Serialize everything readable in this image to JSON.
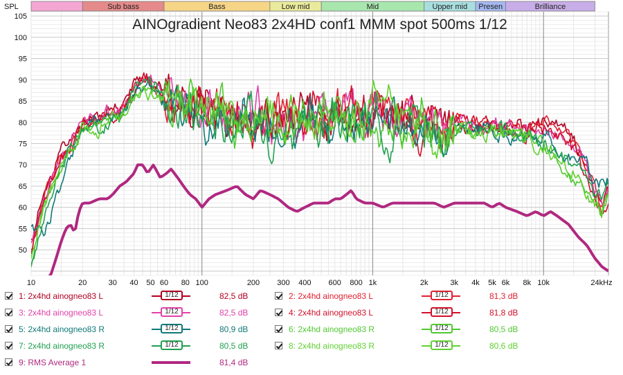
{
  "chart_data": {
    "type": "line",
    "title": "AINOgradient Neo83 2x4HD conf1 MMM spot 500ms 1/12",
    "ylabel": "SPL",
    "xscale": "log",
    "xlim": [
      10,
      24000
    ],
    "ylim": [
      44,
      106
    ],
    "yticks": [
      50,
      55,
      60,
      65,
      70,
      75,
      80,
      85,
      90,
      95,
      100,
      105
    ],
    "ytick_labels": [
      "50",
      "55",
      "60",
      "65",
      "70",
      "75",
      "80",
      "85",
      "90",
      "95",
      "100",
      "105"
    ],
    "xticks": [
      10,
      20,
      30,
      40,
      50,
      60,
      80,
      100,
      200,
      300,
      400,
      600,
      800,
      1000,
      2000,
      3000,
      4000,
      5000,
      6000,
      8000,
      10000,
      24000
    ],
    "xtick_labels": [
      "10",
      "20",
      "30",
      "40",
      "50",
      "60",
      "80",
      "100",
      "200",
      "300",
      "400",
      "600",
      "800",
      "1k",
      "2k",
      "3k",
      "4k",
      "5k",
      "6k",
      "8k",
      "10k",
      "24kHz"
    ],
    "bands": [
      {
        "label": "",
        "from": 10,
        "to": 20,
        "color": "#f4a6d3"
      },
      {
        "label": "Sub bass",
        "from": 20,
        "to": 60,
        "color": "#e58a8a"
      },
      {
        "label": "Bass",
        "from": 60,
        "to": 250,
        "color": "#f6d587"
      },
      {
        "label": "Low mid",
        "from": 250,
        "to": 500,
        "color": "#eaea9c"
      },
      {
        "label": "Mid",
        "from": 500,
        "to": 2000,
        "color": "#a8e6ae"
      },
      {
        "label": "Upper mid",
        "from": 2000,
        "to": 4000,
        "color": "#a8dede"
      },
      {
        "label": "Presen",
        "from": 4000,
        "to": 6000,
        "color": "#a4b8f0"
      },
      {
        "label": "Brilliance",
        "from": 6000,
        "to": 20000,
        "color": "#c8aee8"
      }
    ],
    "grid": true,
    "legend_position": "bottom",
    "series": [
      {
        "name": "1: 2x4hd ainogneo83 L",
        "color": "#b00020",
        "smoothing": "1/12",
        "value": "82,5 dB",
        "seed": 11,
        "x": [
          10,
          12,
          15,
          18,
          20,
          25,
          30,
          35,
          40,
          45,
          50,
          60,
          70,
          80,
          100,
          150,
          200,
          300,
          400,
          500,
          700,
          1000,
          1500,
          2000,
          3000,
          5000,
          8000,
          10000,
          12000,
          15000,
          18000,
          22000,
          24000
        ],
        "y": [
          52,
          64,
          73,
          77,
          80,
          81,
          83,
          85,
          89,
          91,
          90,
          87,
          86,
          85,
          84,
          83,
          81,
          80,
          80,
          81,
          81,
          82,
          81,
          80,
          80,
          79,
          79,
          80,
          79,
          76,
          70,
          60,
          64
        ]
      },
      {
        "name": "2: 2x4hd ainogneo83 L",
        "color": "#e02030",
        "smoothing": "1/12",
        "value": "81,3 dB",
        "seed": 12,
        "x": [
          10,
          12,
          15,
          18,
          20,
          25,
          30,
          35,
          40,
          45,
          50,
          60,
          70,
          80,
          100,
          150,
          200,
          300,
          400,
          500,
          700,
          1000,
          1500,
          2000,
          3000,
          5000,
          8000,
          10000,
          12000,
          15000,
          18000,
          22000,
          24000
        ],
        "y": [
          50,
          62,
          72,
          76,
          79,
          81,
          82,
          84,
          88,
          90,
          89,
          86,
          85,
          84,
          83,
          82,
          81,
          80,
          80,
          80,
          81,
          81,
          81,
          80,
          80,
          79,
          78,
          79,
          78,
          75,
          69,
          59,
          63
        ]
      },
      {
        "name": "3: 2x4hd ainogneo83 L",
        "color": "#e040a8",
        "smoothing": "1/12",
        "value": "82,5 dB",
        "seed": 13,
        "x": [
          10,
          12,
          15,
          18,
          20,
          25,
          30,
          35,
          40,
          45,
          50,
          60,
          70,
          80,
          100,
          150,
          200,
          300,
          400,
          500,
          700,
          1000,
          1500,
          2000,
          3000,
          5000,
          8000,
          10000,
          12000,
          15000,
          18000,
          22000,
          24000
        ],
        "y": [
          51,
          63,
          72,
          77,
          80,
          81,
          83,
          85,
          88,
          90,
          90,
          87,
          86,
          84,
          83,
          82,
          81,
          80,
          80,
          81,
          81,
          81,
          81,
          80,
          80,
          79,
          78,
          78,
          77,
          74,
          69,
          60,
          64
        ]
      },
      {
        "name": "4: 2x4hd ainogneo83 L",
        "color": "#d0102a",
        "smoothing": "1/12",
        "value": "81,8 dB",
        "seed": 14,
        "x": [
          10,
          12,
          15,
          18,
          20,
          25,
          30,
          35,
          40,
          45,
          50,
          60,
          70,
          80,
          100,
          150,
          200,
          300,
          400,
          500,
          700,
          1000,
          1500,
          2000,
          3000,
          5000,
          8000,
          10000,
          12000,
          15000,
          18000,
          22000,
          24000
        ],
        "y": [
          49,
          62,
          71,
          76,
          79,
          80,
          82,
          84,
          87,
          89,
          89,
          86,
          85,
          84,
          83,
          82,
          81,
          80,
          80,
          80,
          81,
          81,
          81,
          80,
          80,
          79,
          78,
          79,
          78,
          74,
          68,
          58,
          62
        ]
      },
      {
        "name": "5: 2x4hd ainogneo83 R",
        "color": "#107878",
        "smoothing": "1/12",
        "value": "80,9 dB",
        "seed": 15,
        "x": [
          10,
          12,
          15,
          18,
          20,
          25,
          30,
          35,
          40,
          45,
          50,
          60,
          70,
          80,
          100,
          150,
          200,
          300,
          400,
          500,
          700,
          1000,
          1500,
          2000,
          3000,
          5000,
          8000,
          10000,
          12000,
          15000,
          18000,
          22000,
          24000
        ],
        "y": [
          56,
          55,
          66,
          74,
          79,
          80,
          81,
          83,
          86,
          88,
          88,
          86,
          84,
          83,
          82,
          81,
          80,
          79,
          79,
          80,
          80,
          81,
          80,
          79,
          79,
          78,
          77,
          76,
          74,
          72,
          69,
          65,
          66
        ]
      },
      {
        "name": "6: 2x4hd ainogneo83 R",
        "color": "#50c830",
        "smoothing": "1/12",
        "value": "80,5 dB",
        "seed": 16,
        "x": [
          10,
          12,
          15,
          18,
          20,
          25,
          30,
          35,
          40,
          45,
          50,
          60,
          70,
          80,
          100,
          150,
          200,
          300,
          400,
          500,
          700,
          1000,
          1500,
          2000,
          3000,
          5000,
          8000,
          10000,
          12000,
          15000,
          18000,
          22000,
          24000
        ],
        "y": [
          47,
          60,
          70,
          75,
          79,
          80,
          81,
          83,
          86,
          88,
          88,
          85,
          84,
          83,
          82,
          81,
          80,
          79,
          79,
          80,
          80,
          80,
          80,
          79,
          79,
          78,
          77,
          74,
          71,
          68,
          64,
          59,
          64
        ]
      },
      {
        "name": "7: 2x4hd ainogneo83 R",
        "color": "#20a050",
        "smoothing": "1/12",
        "value": "80,5 dB",
        "seed": 17,
        "x": [
          10,
          12,
          15,
          18,
          20,
          25,
          30,
          35,
          40,
          45,
          50,
          60,
          70,
          80,
          100,
          150,
          200,
          300,
          400,
          500,
          700,
          1000,
          1500,
          2000,
          3000,
          5000,
          8000,
          10000,
          12000,
          15000,
          18000,
          22000,
          24000
        ],
        "y": [
          46,
          59,
          70,
          75,
          78,
          79,
          81,
          83,
          87,
          89,
          90,
          86,
          84,
          83,
          82,
          81,
          80,
          79,
          79,
          79,
          80,
          80,
          80,
          79,
          79,
          78,
          77,
          75,
          73,
          70,
          66,
          61,
          65
        ]
      },
      {
        "name": "8: 2x4hd ainogneo83 R",
        "color": "#60d030",
        "smoothing": "1/12",
        "value": "80,6 dB",
        "seed": 18,
        "x": [
          10,
          12,
          15,
          18,
          20,
          25,
          30,
          35,
          40,
          45,
          50,
          60,
          70,
          80,
          100,
          150,
          200,
          300,
          400,
          500,
          700,
          1000,
          1500,
          2000,
          3000,
          5000,
          8000,
          10000,
          12000,
          15000,
          18000,
          22000,
          24000
        ],
        "y": [
          47,
          60,
          70,
          75,
          78,
          79,
          81,
          82,
          85,
          87,
          87,
          85,
          84,
          83,
          82,
          81,
          80,
          79,
          78,
          79,
          80,
          80,
          80,
          79,
          79,
          78,
          76,
          73,
          71,
          67,
          63,
          59,
          63
        ]
      },
      {
        "name": "9: RMS Average 1",
        "color": "#b02880",
        "smoothing": "",
        "value": "81,4 dB",
        "seed": 0,
        "thick": true,
        "x": [
          10,
          13,
          14,
          15,
          16,
          17,
          18,
          19,
          20,
          22,
          25,
          28,
          30,
          33,
          36,
          40,
          42,
          45,
          48,
          52,
          57,
          62,
          66,
          72,
          78,
          85,
          92,
          100,
          110,
          120,
          140,
          160,
          180,
          200,
          220,
          250,
          280,
          320,
          360,
          400,
          450,
          500,
          550,
          600,
          650,
          700,
          750,
          800,
          900,
          1000,
          1150,
          1300,
          1500,
          1700,
          2000,
          2300,
          2600,
          3000,
          3500,
          4000,
          4500,
          5000,
          5500,
          6000,
          7000,
          8000,
          9000,
          10000,
          11000,
          12000,
          14000,
          16000,
          18000,
          20000,
          22000,
          24000
        ],
        "y": [
          40,
          44,
          48,
          52,
          55,
          56,
          54,
          59,
          61,
          61,
          62,
          62,
          63,
          65,
          66,
          68,
          70,
          70,
          68,
          70,
          67,
          68,
          69,
          67,
          65,
          63,
          62,
          60,
          62,
          63,
          64,
          65,
          63,
          62,
          64,
          63,
          62,
          60,
          59,
          60,
          61,
          61,
          61,
          62,
          62,
          63,
          64,
          62,
          61,
          61,
          60,
          61,
          61,
          61,
          61,
          61,
          60,
          61,
          61,
          61,
          61,
          60,
          61,
          60,
          59,
          58,
          59,
          58,
          59,
          58,
          56,
          53,
          51,
          48,
          46,
          45
        ]
      }
    ]
  }
}
